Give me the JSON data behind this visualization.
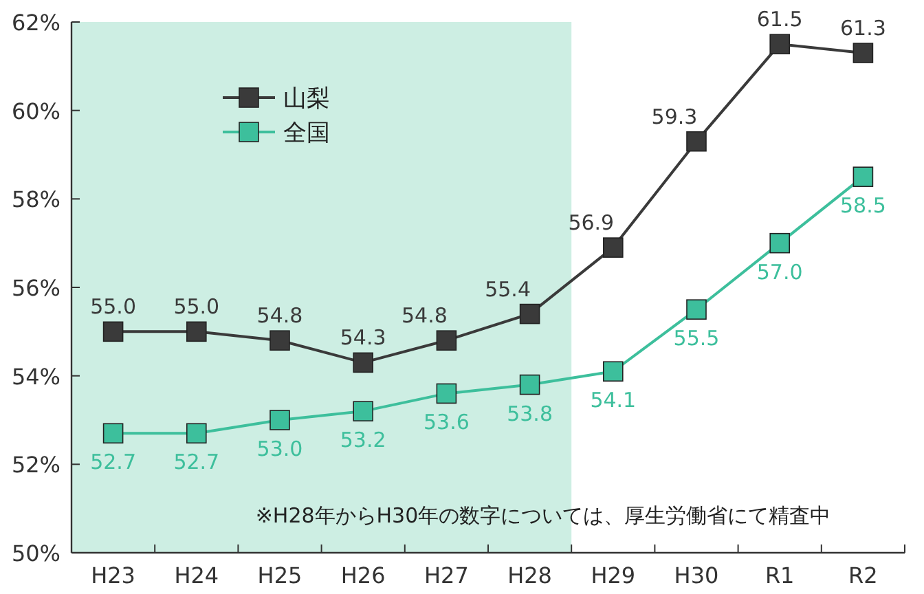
{
  "chart_data": {
    "type": "line",
    "categories": [
      "H23",
      "H24",
      "H25",
      "H26",
      "H27",
      "H28",
      "H29",
      "H30",
      "R1",
      "R2"
    ],
    "series": [
      {
        "name": "山梨",
        "color": "#3a3a3a",
        "values": [
          55.0,
          55.0,
          54.8,
          54.3,
          54.8,
          55.4,
          56.9,
          59.3,
          61.5,
          61.3
        ],
        "value_labels": [
          "55.0",
          "55.0",
          "54.8",
          "54.3",
          "54.8",
          "55.4",
          "56.9",
          "59.3",
          "61.5",
          "61.3"
        ]
      },
      {
        "name": "全国",
        "color": "#3dbf9c",
        "values": [
          52.7,
          52.7,
          53.0,
          53.2,
          53.6,
          53.8,
          54.1,
          55.5,
          57.0,
          58.5
        ],
        "value_labels": [
          "52.7",
          "52.7",
          "53.0",
          "53.2",
          "53.6",
          "53.8",
          "54.1",
          "55.5",
          "57.0",
          "58.5"
        ]
      }
    ],
    "ylim": [
      50,
      62
    ],
    "yticks": [
      {
        "value": 50,
        "label": "50%"
      },
      {
        "value": 52,
        "label": "52%"
      },
      {
        "value": 54,
        "label": "54%"
      },
      {
        "value": 56,
        "label": "56%"
      },
      {
        "value": 58,
        "label": "58%"
      },
      {
        "value": 60,
        "label": "60%"
      },
      {
        "value": 62,
        "label": "62%"
      }
    ],
    "bands": [
      {
        "axis": "x",
        "from": "H23",
        "to": "H28",
        "color": "#cdeee3"
      }
    ],
    "annotations": [
      "※H28年からH30年の数字については、厚生労働省にて精査中"
    ],
    "marker": "square",
    "legend": "top left",
    "grid": false
  }
}
